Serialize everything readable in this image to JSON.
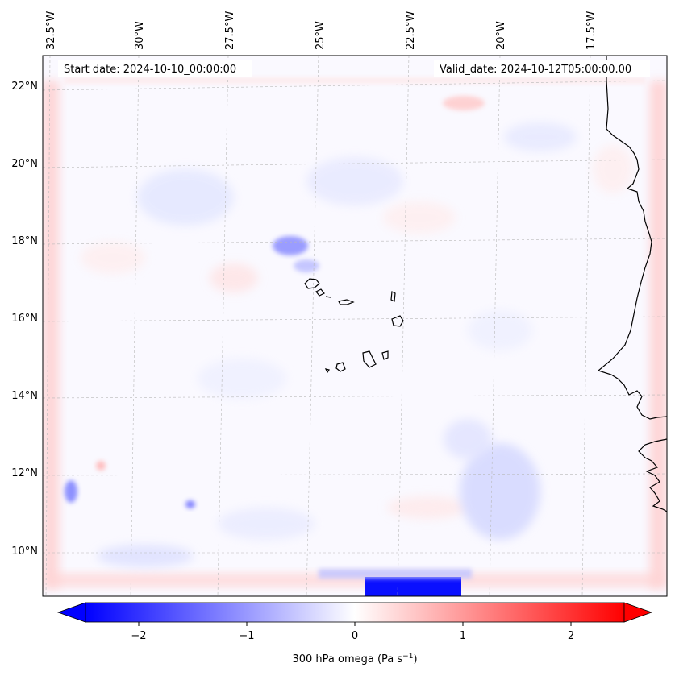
{
  "map": {
    "start_date": "Start date: 2024-10-10_00:00:00",
    "valid_date": "Valid_date: 2024-10-12T05:00:00.00",
    "lon_labels": [
      "32.5°W",
      "30°W",
      "27.5°W",
      "25°W",
      "22.5°W",
      "20°W",
      "17.5°W"
    ],
    "lat_labels": [
      "22°N",
      "20°N",
      "18°N",
      "16°N",
      "14°N",
      "12°N",
      "10°N"
    ],
    "colorbar": {
      "label_main": "300 hPa omega (Pa s",
      "label_sup": "−1",
      "label_close": ")",
      "ticks": [
        "−2",
        "−1",
        "0",
        "1",
        "2"
      ],
      "range": [
        -2.6,
        2.6
      ],
      "cmap": "bwr",
      "extend": "both"
    },
    "colors": {
      "neg": "#0000ff",
      "zero": "#ffffff",
      "pos": "#ff0000",
      "coast": "#000000"
    }
  }
}
